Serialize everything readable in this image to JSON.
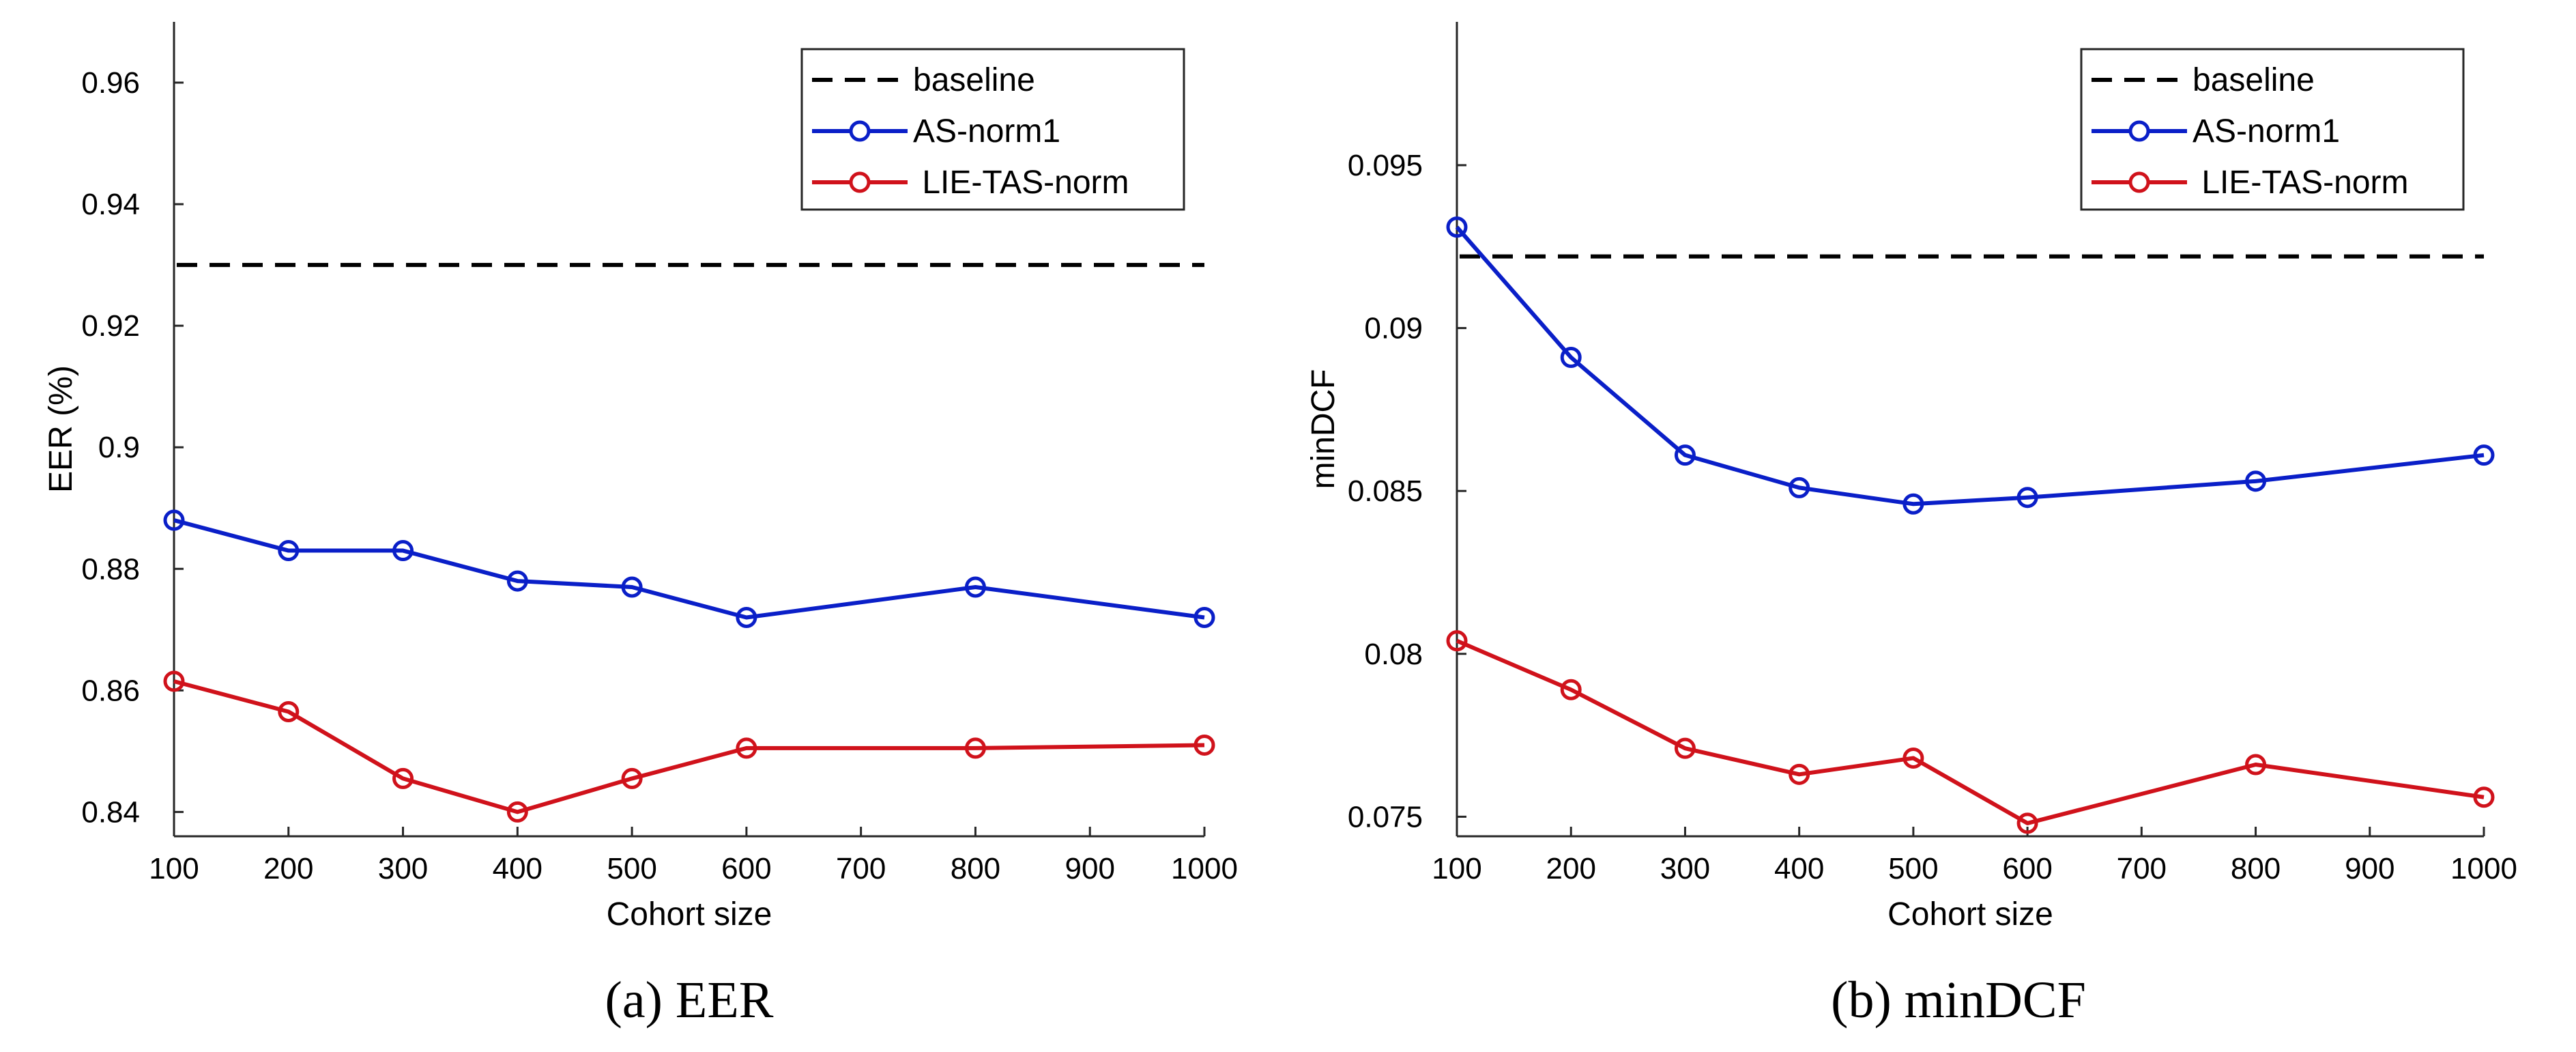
{
  "chart_data": [
    {
      "type": "line",
      "caption": "(a) EER",
      "xlabel": "Cohort size",
      "ylabel": "EER (%)",
      "xlim": [
        100,
        1000
      ],
      "ylim": [
        0.836,
        0.97
      ],
      "xticks": [
        100,
        200,
        300,
        400,
        500,
        600,
        700,
        800,
        900,
        1000
      ],
      "xtick_labels": [
        "100",
        "200",
        "300",
        "400",
        "500",
        "600",
        "700",
        "800",
        "900",
        "1000"
      ],
      "yticks": [
        0.84,
        0.86,
        0.88,
        0.9,
        0.92,
        0.94,
        0.96
      ],
      "ytick_labels": [
        "0.84",
        "0.86",
        "0.88",
        "0.9",
        "0.92",
        "0.94",
        "0.96"
      ],
      "x": [
        100,
        200,
        300,
        400,
        500,
        600,
        800,
        1000
      ],
      "baseline": {
        "name": "baseline",
        "value": 0.93,
        "color": "#000000"
      },
      "series": [
        {
          "name": "AS-norm1",
          "color": "#0a1fc8",
          "values": [
            0.888,
            0.883,
            0.883,
            0.878,
            0.877,
            0.872,
            0.877,
            0.872
          ]
        },
        {
          "name": " LIE-TAS-norm",
          "color": "#d0121b",
          "values": [
            0.8615,
            0.8565,
            0.8455,
            0.84,
            0.8455,
            0.8505,
            0.8505,
            0.851
          ]
        }
      ],
      "grid": false,
      "legend_position": "top-right"
    },
    {
      "type": "line",
      "caption": "(b) minDCF",
      "xlabel": "Cohort size",
      "ylabel": "minDCF",
      "xlim": [
        100,
        1000
      ],
      "ylim": [
        0.0744,
        0.0994
      ],
      "xticks": [
        100,
        200,
        300,
        400,
        500,
        600,
        700,
        800,
        900,
        1000
      ],
      "xtick_labels": [
        "100",
        "200",
        "300",
        "400",
        "500",
        "600",
        "700",
        "800",
        "900",
        "1000"
      ],
      "yticks": [
        0.075,
        0.08,
        0.085,
        0.09,
        0.095
      ],
      "ytick_labels": [
        "0.075",
        "0.08",
        "0.085",
        "0.09",
        "0.095"
      ],
      "x": [
        100,
        200,
        300,
        400,
        500,
        600,
        800,
        1000
      ],
      "baseline": {
        "name": "baseline",
        "value": 0.0922,
        "color": "#000000"
      },
      "series": [
        {
          "name": "AS-norm1",
          "color": "#0a1fc8",
          "values": [
            0.0931,
            0.0891,
            0.0861,
            0.0851,
            0.0846,
            0.0848,
            0.0853,
            0.0861
          ]
        },
        {
          "name": " LIE-TAS-norm",
          "color": "#d0121b",
          "values": [
            0.0804,
            0.0789,
            0.0771,
            0.0763,
            0.0768,
            0.0748,
            0.0766,
            0.0756
          ]
        }
      ],
      "grid": false,
      "legend_position": "top-right"
    }
  ]
}
